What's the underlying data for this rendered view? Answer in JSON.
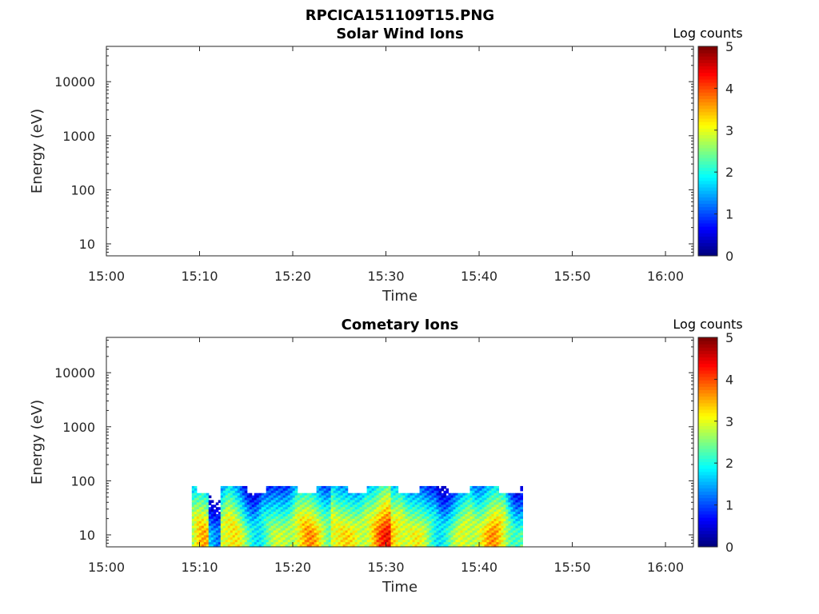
{
  "figure_title": "RPCICA151109T15.PNG",
  "chart_data": [
    {
      "type": "heatmap",
      "title": "Solar Wind Ions",
      "xlabel": "Time",
      "ylabel": "Energy (eV)",
      "x_ticks": [
        "15:00",
        "15:10",
        "15:20",
        "15:30",
        "15:40",
        "15:50",
        "16:00"
      ],
      "xlim_minutes": [
        0,
        63
      ],
      "y_scale": "log",
      "y_ticks": [
        "10",
        "100",
        "1000",
        "10000"
      ],
      "ylim": [
        6,
        45000
      ],
      "colorbar": {
        "label": "Log counts",
        "ticks": [
          "0",
          "1",
          "2",
          "3",
          "4",
          "5"
        ],
        "range": [
          0,
          5
        ],
        "colormap": "jet"
      },
      "data_present": false
    },
    {
      "type": "heatmap",
      "title": "Cometary Ions",
      "xlabel": "Time",
      "ylabel": "Energy (eV)",
      "x_ticks": [
        "15:00",
        "15:10",
        "15:20",
        "15:30",
        "15:40",
        "15:50",
        "16:00"
      ],
      "xlim_minutes": [
        0,
        63
      ],
      "y_scale": "log",
      "y_ticks": [
        "10",
        "100",
        "1000",
        "10000"
      ],
      "ylim": [
        6,
        45000
      ],
      "colorbar": {
        "label": "Log counts",
        "ticks": [
          "0",
          "1",
          "2",
          "3",
          "4",
          "5"
        ],
        "range": [
          0,
          5
        ],
        "colormap": "jet"
      },
      "data_present": true,
      "data_time_range": [
        "15:09:10",
        "15:44:40"
      ],
      "data_energy_range_eV": [
        6,
        80
      ],
      "mean_log_counts": 2.5,
      "peak_log_counts": 3.8
    }
  ]
}
